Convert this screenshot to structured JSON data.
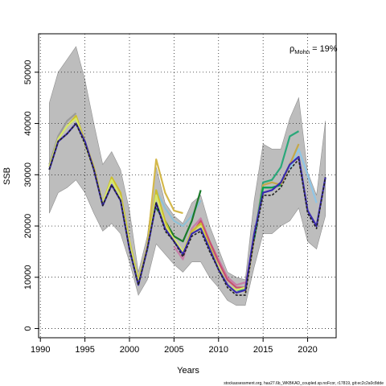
{
  "chart_data": {
    "type": "line",
    "xlabel": "Years",
    "ylabel": "SSB",
    "xlim": [
      1989.8,
      2023.2
    ],
    "ylim": [
      -1800,
      57500
    ],
    "x_ticks": [
      1990,
      1995,
      2000,
      2005,
      2010,
      2015,
      2020
    ],
    "y_ticks": [
      0,
      10000,
      20000,
      30000,
      40000,
      50000
    ],
    "grid": true,
    "annotation": {
      "rho": "ρ",
      "sub": "Mohn",
      "text": " = 19%"
    },
    "footer": "stockassessment.org, has27.6b_WKBKAD_coupled.sp.noFcor, r17819, git:ec2c2a0c8dde",
    "band": {
      "name": "confidence band",
      "x": [
        1991,
        1992,
        1993,
        1994,
        1995,
        1996,
        1997,
        1998,
        1999,
        2000,
        2001,
        2002,
        2003,
        2004,
        2005,
        2006,
        2007,
        2008,
        2009,
        2010,
        2011,
        2012,
        2013,
        2014,
        2015,
        2016,
        2017,
        2018,
        2019,
        2020,
        2021,
        2022
      ],
      "lower": [
        22500,
        26500,
        27500,
        29000,
        26500,
        22500,
        19000,
        20500,
        18500,
        13000,
        6500,
        9500,
        16500,
        14500,
        12500,
        11000,
        13000,
        13000,
        10000,
        8000,
        5500,
        4500,
        4500,
        12000,
        18500,
        18500,
        20000,
        21000,
        23500,
        17000,
        15500,
        22000
      ],
      "upper": [
        44000,
        50000,
        52500,
        55000,
        48500,
        40000,
        32000,
        34500,
        31000,
        23000,
        11000,
        18000,
        31500,
        24500,
        22000,
        20500,
        24500,
        26000,
        20000,
        15500,
        11000,
        10000,
        9500,
        25000,
        36000,
        35000,
        35000,
        41000,
        45000,
        30500,
        26000,
        40500
      ]
    },
    "series": [
      {
        "color": "#9a9a9a",
        "start": 1991,
        "values": [
          32000,
          37500,
          40500,
          42000
        ]
      },
      {
        "color": "#d4b84a",
        "start": 2001,
        "values": [
          9000,
          16000,
          33000,
          26500,
          23000,
          22500
        ]
      },
      {
        "color": "#8ec1d6",
        "start": 2002,
        "values": [
          15000,
          27000,
          23500,
          21000,
          20000,
          22000,
          25000
        ]
      },
      {
        "color": "#1a7a2a",
        "start": 2003,
        "values": [
          23500,
          21000,
          18000,
          17000,
          21000,
          27000
        ]
      },
      {
        "color": "#c87da8",
        "start": 2005,
        "values": [
          16000,
          13500,
          19500,
          21500,
          17000,
          13500,
          10000,
          8500,
          9000
        ]
      },
      {
        "color": "#c8506e",
        "start": 2006,
        "values": [
          14500,
          18500,
          21000,
          17000,
          13000,
          9500,
          8000,
          8000,
          18000
        ]
      },
      {
        "color": "#2aa87a",
        "start": 2012,
        "values": [
          7500,
          7500,
          17500,
          28500,
          29000,
          31500,
          37500,
          38500
        ]
      },
      {
        "color": "#c4a84a",
        "start": 2013,
        "values": [
          7000,
          17500,
          28000,
          28500,
          28000,
          32000,
          36000
        ]
      },
      {
        "color": "#8ec6e8",
        "start": 2018,
        "values": [
          31000,
          35000,
          30000,
          24500
        ]
      },
      {
        "color": "#00a050",
        "start": 2014,
        "values": [
          17500,
          27500,
          27500,
          28000
        ]
      },
      {
        "color": "#cdbe2e",
        "start": 1991,
        "values": [
          31500,
          37000,
          39500,
          41500,
          36500,
          31500,
          24500,
          29500,
          26500,
          17000,
          9500,
          15500,
          27000,
          21000,
          17000,
          15000,
          19000,
          20500,
          16000,
          12000,
          8500,
          7500
        ]
      },
      {
        "color": "#d7e86a",
        "start": 1991,
        "values": [
          31500,
          37000,
          39500,
          41000,
          36000,
          31000,
          24500,
          29000,
          25500,
          16500,
          9000,
          15500,
          26000,
          20000,
          17500,
          15000,
          18500,
          20000,
          15500,
          12000,
          8500,
          7500,
          8000
        ]
      },
      {
        "color": "#3a2ab0",
        "start": 1991,
        "values": [
          31000,
          36500,
          38000,
          40000,
          36500,
          31000,
          24000,
          28000,
          25000,
          15500,
          8500,
          15500,
          24500,
          19500,
          17000,
          14500,
          18500,
          19500,
          15500,
          11500,
          8500,
          7000,
          7500,
          18500,
          26500,
          27000,
          28500,
          32000,
          33500,
          23000,
          20000,
          29500
        ]
      },
      {
        "color": "#222222",
        "start": 1991,
        "values": [
          31000,
          36500,
          38000,
          40000,
          36000,
          31000,
          24000,
          28000,
          25000,
          15500,
          8500,
          15500,
          24500,
          19000,
          17000,
          14000,
          18000,
          19000,
          15000,
          11500,
          8000,
          6500,
          6500,
          17500,
          26000,
          26000,
          27500,
          31000,
          33000,
          22500,
          19500,
          29500
        ]
      }
    ]
  }
}
